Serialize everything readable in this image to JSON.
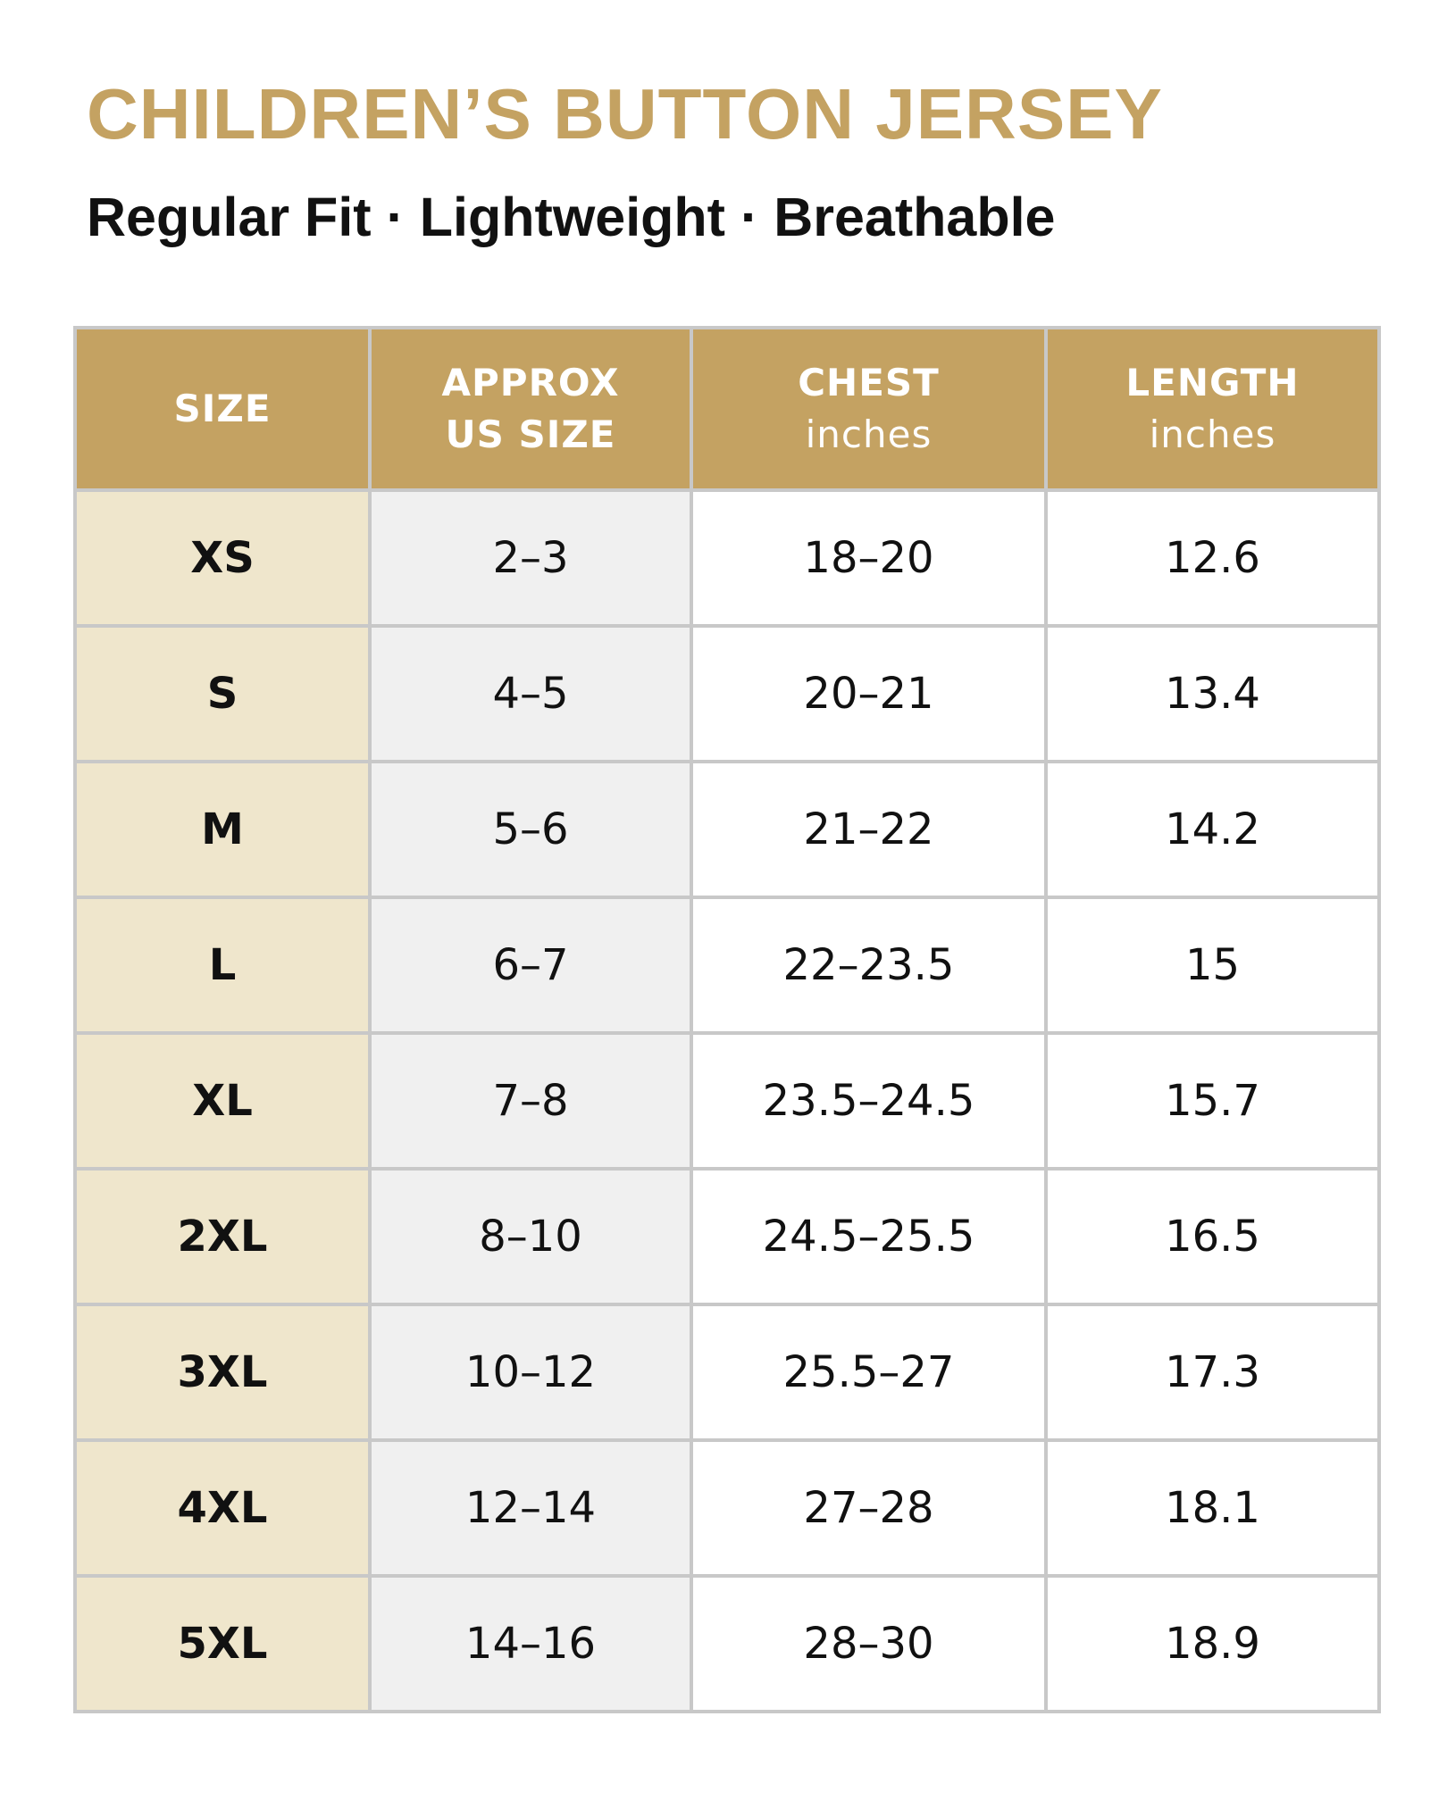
{
  "header": {
    "title": "CHILDREN’S BUTTON JERSEY",
    "subtitle": "Regular Fit · Lightweight · Breathable"
  },
  "table": {
    "columns": [
      {
        "lines": [
          "SIZE"
        ]
      },
      {
        "lines": [
          "APPROX",
          "US SIZE"
        ]
      },
      {
        "lines": [
          "CHEST"
        ],
        "unit": "inches"
      },
      {
        "lines": [
          "LENGTH"
        ],
        "unit": "inches"
      }
    ],
    "rows": [
      [
        "XS",
        "2–3",
        "18–20",
        "12.6"
      ],
      [
        "S",
        "4–5",
        "20–21",
        "13.4"
      ],
      [
        "M",
        "5–6",
        "21–22",
        "14.2"
      ],
      [
        "L",
        "6–7",
        "22–23.5",
        "15"
      ],
      [
        "XL",
        "7–8",
        "23.5–24.5",
        "15.7"
      ],
      [
        "2XL",
        "8–10",
        "24.5–25.5",
        "16.5"
      ],
      [
        "3XL",
        "10–12",
        "25.5–27",
        "17.3"
      ],
      [
        "4XL",
        "12–14",
        "27–28",
        "18.1"
      ],
      [
        "5XL",
        "14–16",
        "28–30",
        "18.9"
      ]
    ]
  }
}
